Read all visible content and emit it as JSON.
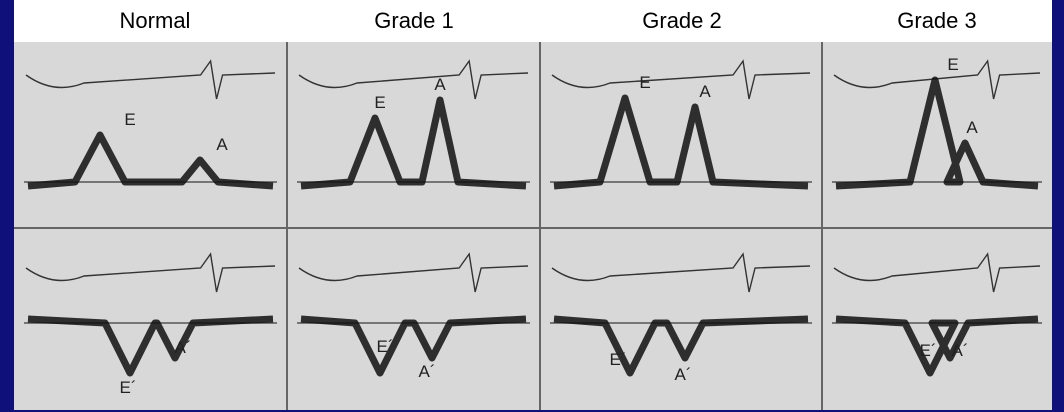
{
  "header": {
    "columns": [
      "Normal",
      "Grade 1",
      "Grade 2",
      "Grade 3"
    ]
  },
  "rows": [
    {
      "panels": [
        {
          "labels": [
            "E",
            "A"
          ]
        },
        {
          "labels": [
            "E",
            "A"
          ]
        },
        {
          "labels": [
            "E",
            "A"
          ]
        },
        {
          "labels": [
            "E",
            "A"
          ]
        }
      ]
    },
    {
      "panels": [
        {
          "labels": [
            "E´",
            "A´"
          ]
        },
        {
          "labels": [
            "E´",
            "A´"
          ]
        },
        {
          "labels": [
            "E´",
            "A´"
          ]
        },
        {
          "labels": [
            "E´",
            "A´"
          ]
        }
      ]
    }
  ]
}
